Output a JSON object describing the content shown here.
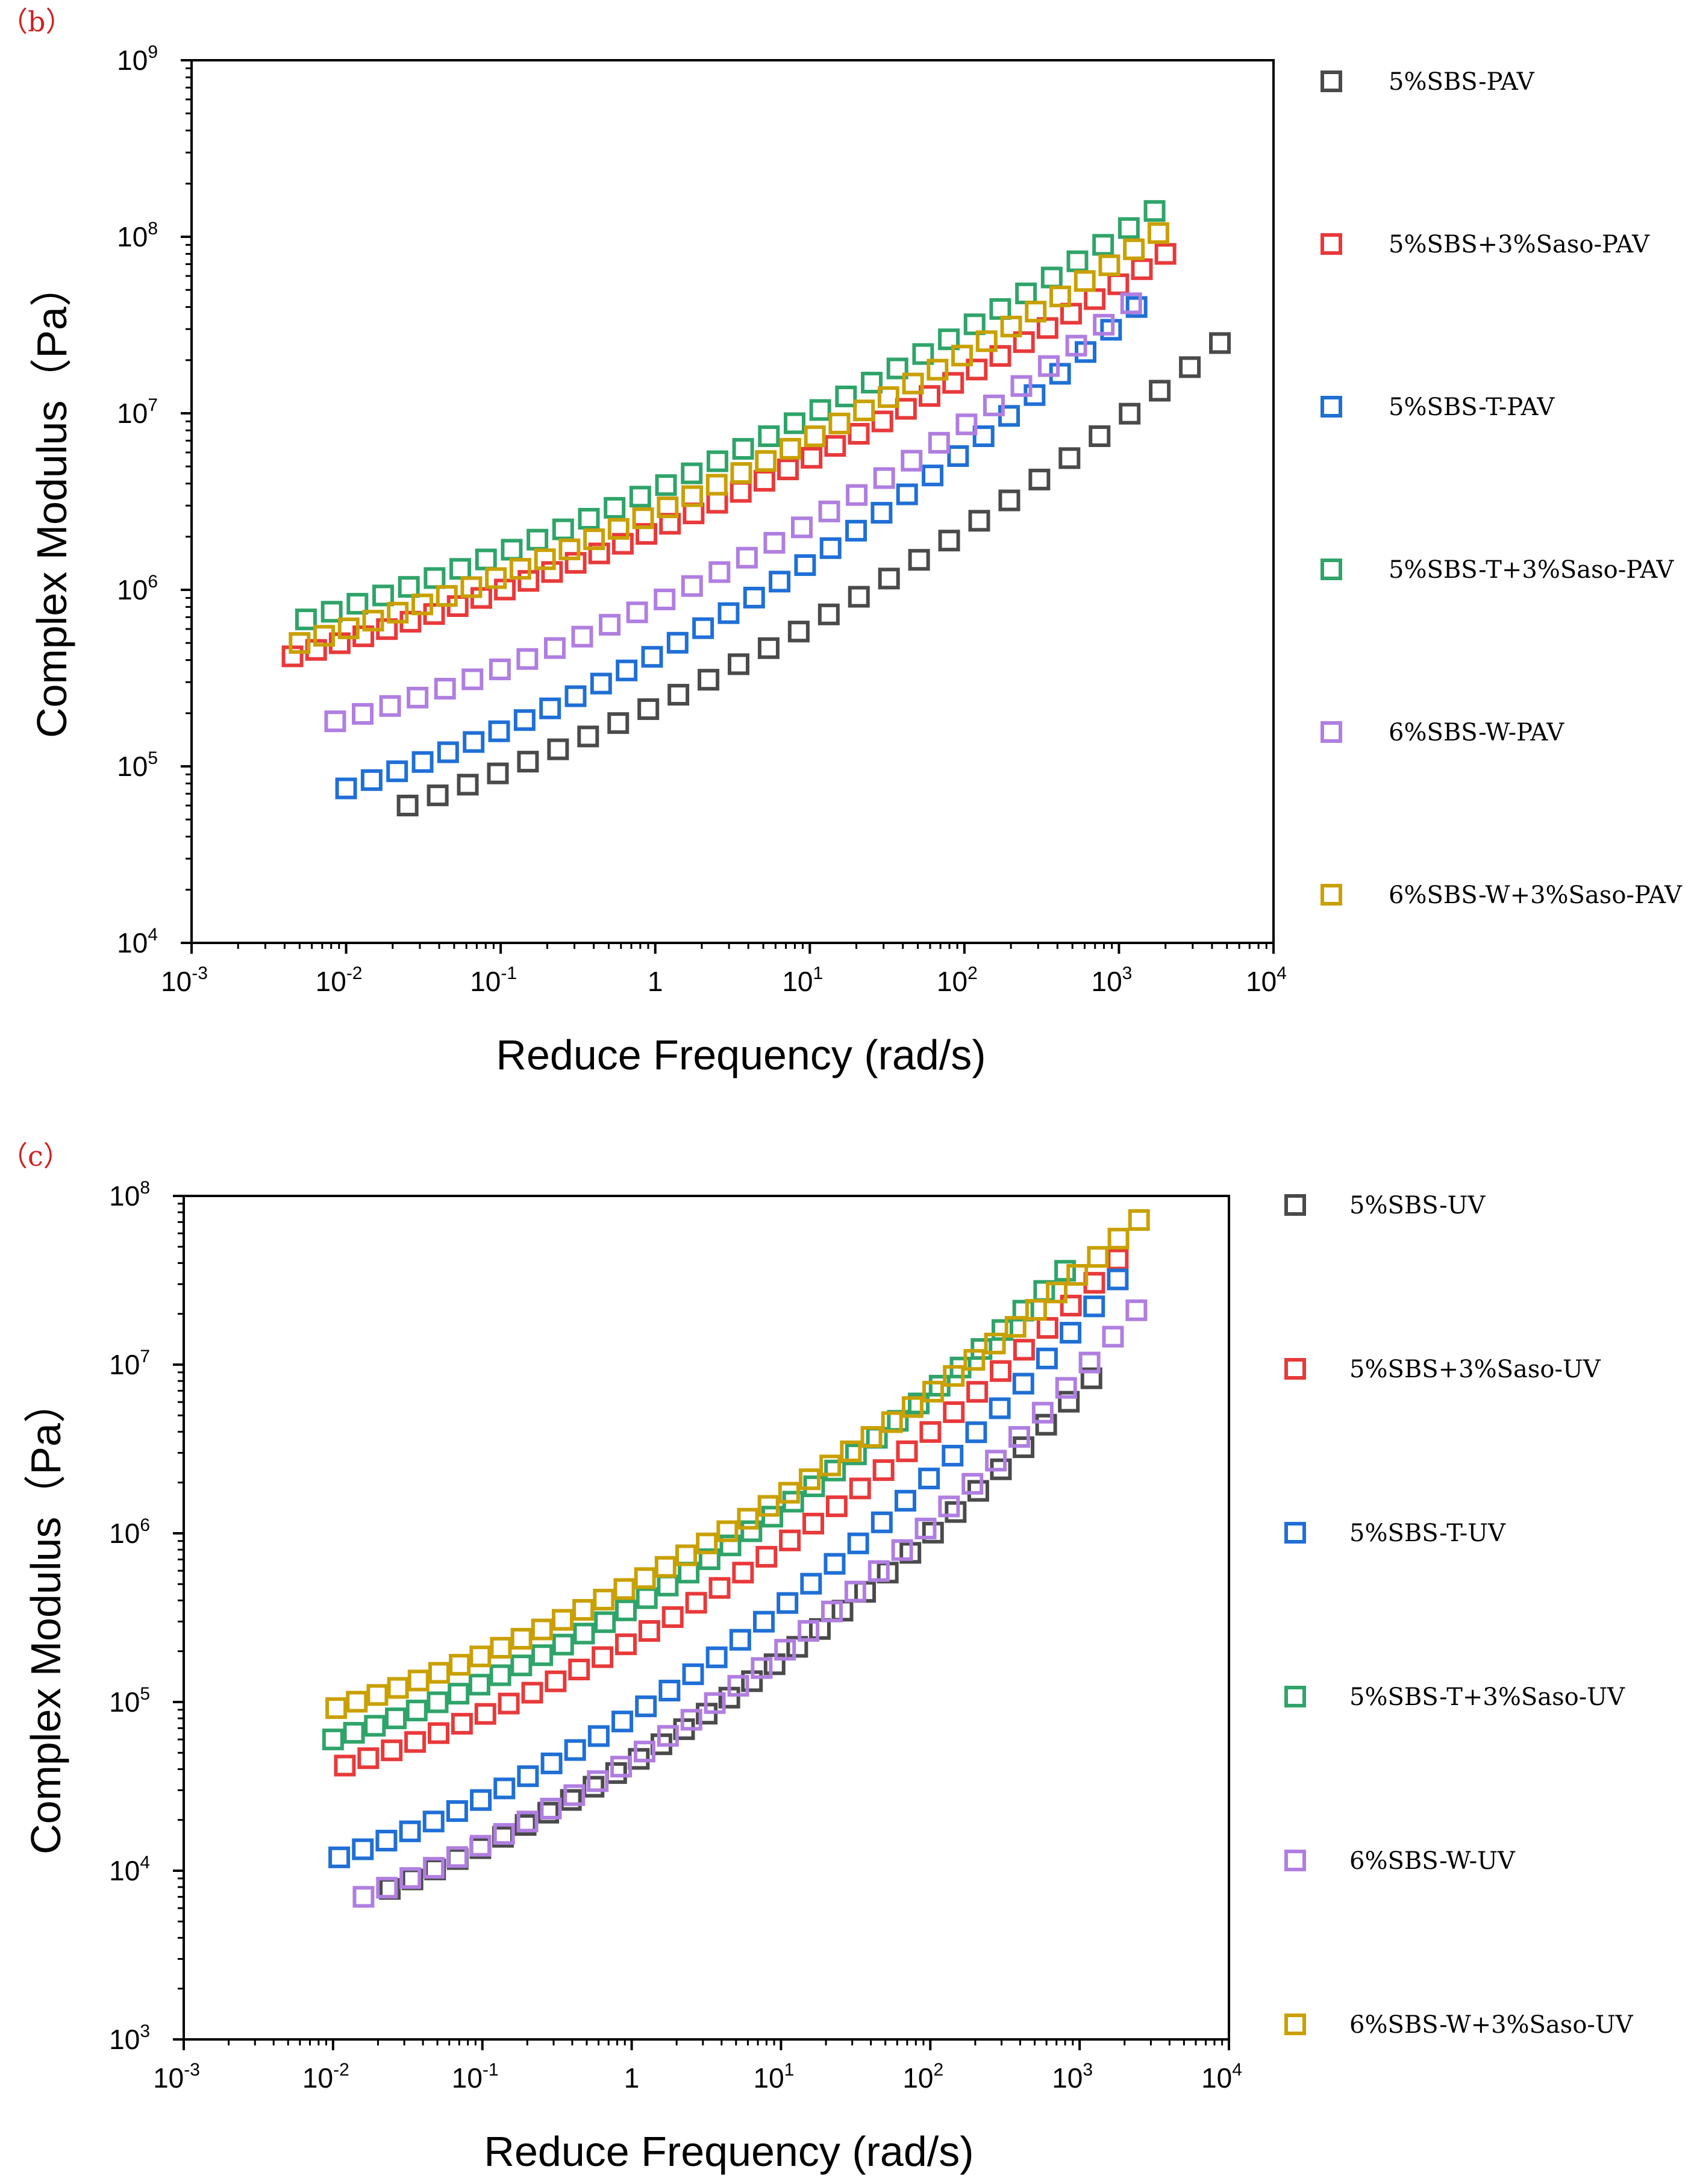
{
  "chart_data": [
    {
      "type": "scatter",
      "panel_label": "（b）",
      "title": "",
      "xlabel": "Reduce Frequency (rad/s)",
      "ylabel": "Complex Modulus（Pa）",
      "xscale": "log",
      "yscale": "log",
      "xlim": [
        0.001,
        10000
      ],
      "ylim": [
        10000,
        1000000000
      ],
      "xticks": [
        {
          "base": "10",
          "exp": "-3",
          "value": 0.001
        },
        {
          "base": "10",
          "exp": "-2",
          "value": 0.01
        },
        {
          "base": "10",
          "exp": "-1",
          "value": 0.1
        },
        {
          "base": "1",
          "exp": "",
          "value": 1
        },
        {
          "base": "10",
          "exp": "1",
          "value": 10
        },
        {
          "base": "10",
          "exp": "2",
          "value": 100
        },
        {
          "base": "10",
          "exp": "3",
          "value": 1000
        },
        {
          "base": "10",
          "exp": "4",
          "value": 10000
        }
      ],
      "yticks": [
        {
          "base": "10",
          "exp": "4",
          "value": 10000
        },
        {
          "base": "10",
          "exp": "5",
          "value": 100000
        },
        {
          "base": "10",
          "exp": "6",
          "value": 1000000
        },
        {
          "base": "10",
          "exp": "7",
          "value": 10000000
        },
        {
          "base": "10",
          "exp": "8",
          "value": 100000000
        },
        {
          "base": "10",
          "exp": "9",
          "value": 1000000000
        }
      ],
      "legend_position": "right-outside",
      "series": [
        {
          "name": "5%SBS-PAV",
          "color": "#4a4a4a",
          "x_start": 0.025,
          "x_end": 4500,
          "y_start": 60000,
          "y_end": 25000000,
          "count": 28,
          "curvature": -0.08
        },
        {
          "name": "5%SBS+3%Saso-PAV",
          "color": "#e8393a",
          "x_start": 0.0045,
          "x_end": 2000,
          "y_start": 420000,
          "y_end": 80000000,
          "count": 38,
          "curvature": -0.06
        },
        {
          "name": "5%SBS-T-PAV",
          "color": "#1f6fd6",
          "x_start": 0.01,
          "x_end": 1300,
          "y_start": 75000,
          "y_end": 40000000,
          "count": 32,
          "curvature": -0.1
        },
        {
          "name": "5%SBS-T+3%Saso-PAV",
          "color": "#2fa46a",
          "x_start": 0.0055,
          "x_end": 1700,
          "y_start": 680000,
          "y_end": 140000000,
          "count": 34,
          "curvature": -0.06
        },
        {
          "name": "6%SBS-W-PAV",
          "color": "#b07ee0",
          "x_start": 0.0085,
          "x_end": 1200,
          "y_start": 180000,
          "y_end": 42000000,
          "count": 30,
          "curvature": -0.09
        },
        {
          "name": "6%SBS-W+3%Saso-PAV",
          "color": "#c9a000",
          "x_start": 0.005,
          "x_end": 1800,
          "y_start": 500000,
          "y_end": 105000000,
          "count": 36,
          "curvature": -0.06
        }
      ]
    },
    {
      "type": "scatter",
      "panel_label": "（c）",
      "title": "",
      "xlabel": "Reduce Frequency (rad/s)",
      "ylabel": "Complex Modulus（Pa）",
      "xscale": "log",
      "yscale": "log",
      "xlim": [
        0.001,
        10000
      ],
      "ylim": [
        1000,
        100000000
      ],
      "xticks": [
        {
          "base": "10",
          "exp": "-3",
          "value": 0.001
        },
        {
          "base": "10",
          "exp": "-2",
          "value": 0.01
        },
        {
          "base": "10",
          "exp": "-1",
          "value": 0.1
        },
        {
          "base": "1",
          "exp": "",
          "value": 1
        },
        {
          "base": "10",
          "exp": "1",
          "value": 10
        },
        {
          "base": "10",
          "exp": "2",
          "value": 100
        },
        {
          "base": "10",
          "exp": "3",
          "value": 1000
        },
        {
          "base": "10",
          "exp": "4",
          "value": 10000
        }
      ],
      "yticks": [
        {
          "base": "10",
          "exp": "3",
          "value": 1000
        },
        {
          "base": "10",
          "exp": "4",
          "value": 10000
        },
        {
          "base": "10",
          "exp": "5",
          "value": 100000
        },
        {
          "base": "10",
          "exp": "6",
          "value": 1000000
        },
        {
          "base": "10",
          "exp": "7",
          "value": 10000000
        },
        {
          "base": "10",
          "exp": "8",
          "value": 100000000
        }
      ],
      "legend_position": "right-outside",
      "series": [
        {
          "name": "5%SBS-UV",
          "color": "#4a4a4a",
          "x_start": 0.024,
          "x_end": 1200,
          "y_start": 7800,
          "y_end": 8300000,
          "count": 32,
          "curvature": -0.12
        },
        {
          "name": "5%SBS+3%Saso-UV",
          "color": "#e8393a",
          "x_start": 0.012,
          "x_end": 1800,
          "y_start": 42000,
          "y_end": 42000000,
          "count": 34,
          "curvature": -0.12
        },
        {
          "name": "5%SBS-T-UV",
          "color": "#1f6fd6",
          "x_start": 0.011,
          "x_end": 1800,
          "y_start": 12000,
          "y_end": 32000000,
          "count": 34,
          "curvature": -0.14
        },
        {
          "name": "5%SBS-T+3%Saso-UV",
          "color": "#2fa46a",
          "x_start": 0.01,
          "x_end": 800,
          "y_start": 60000,
          "y_end": 36000000,
          "count": 36,
          "curvature": -0.12
        },
        {
          "name": "6%SBS-W-UV",
          "color": "#b07ee0",
          "x_start": 0.016,
          "x_end": 2400,
          "y_start": 7000,
          "y_end": 21000000,
          "count": 34,
          "curvature": -0.13
        },
        {
          "name": "6%SBS-W+3%Saso-UV",
          "color": "#c9a000",
          "x_start": 0.0105,
          "x_end": 2500,
          "y_start": 92000,
          "y_end": 72000000,
          "count": 40,
          "curvature": -0.1
        }
      ]
    }
  ]
}
